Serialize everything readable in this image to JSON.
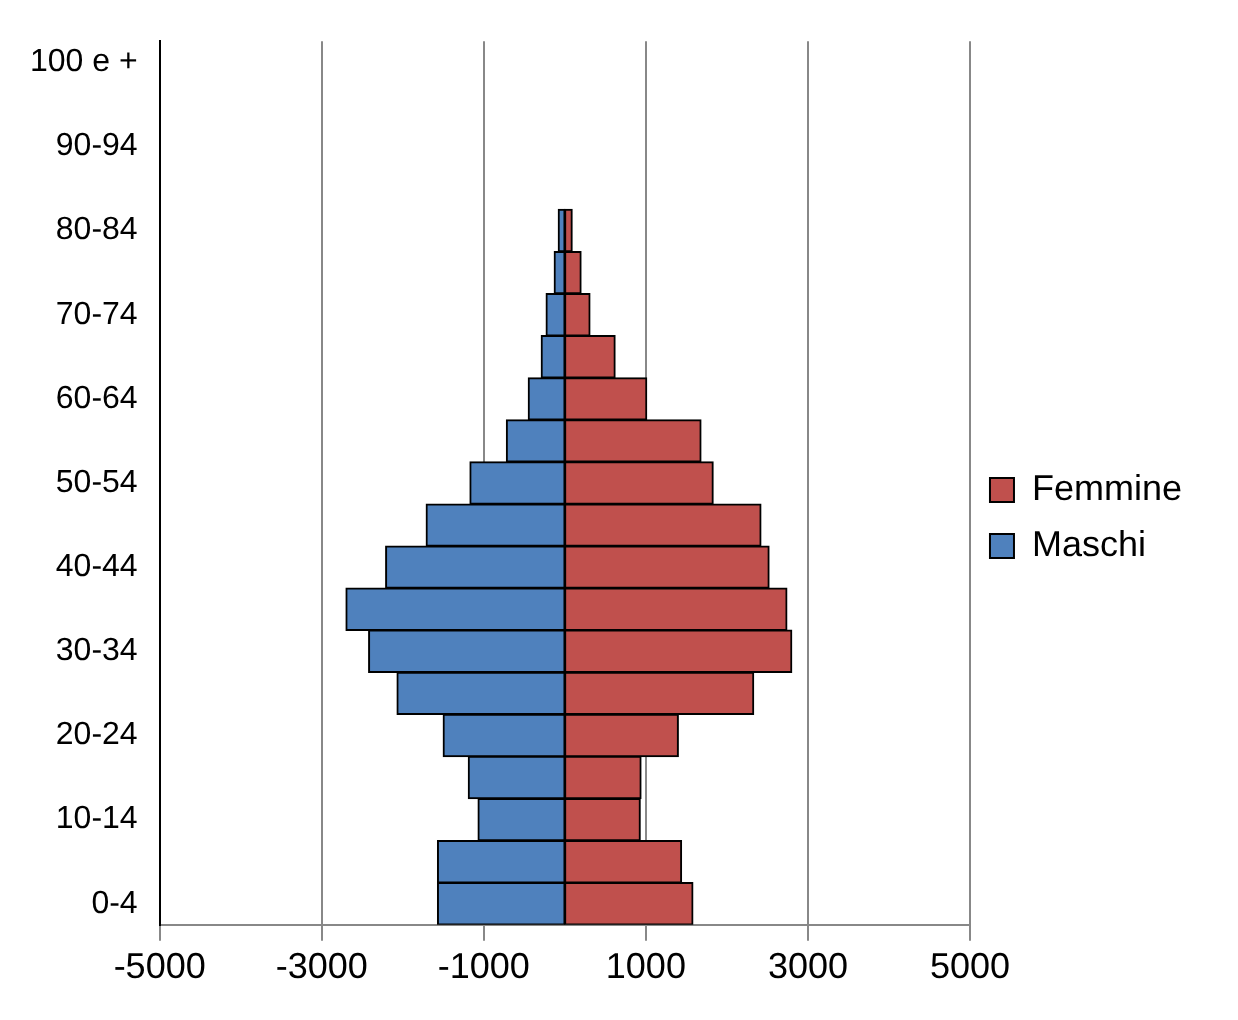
{
  "chart_data": {
    "type": "bar",
    "orientation": "horizontal",
    "stacked": true,
    "categories": [
      "100 e +",
      null,
      "90-94",
      null,
      "80-84",
      null,
      "70-74",
      null,
      "60-64",
      null,
      "50-54",
      null,
      "40-44",
      null,
      "30-34",
      null,
      "20-24",
      null,
      "10-14",
      null,
      "0-4"
    ],
    "series": [
      {
        "name": "Femmine",
        "color": "#c0504d",
        "values": [
          0,
          0,
          0,
          0,
          90,
          200,
          310,
          620,
          1010,
          1680,
          1830,
          2420,
          2520,
          2740,
          2800,
          2330,
          1400,
          940,
          930,
          1440,
          1580
        ]
      },
      {
        "name": "Maschi",
        "color": "#4f81bd",
        "values": [
          0,
          0,
          0,
          0,
          -80,
          -130,
          -230,
          -290,
          -450,
          -720,
          -1170,
          -1710,
          -2210,
          -2700,
          -2420,
          -2070,
          -1500,
          -1190,
          -1070,
          -1570,
          -1570
        ]
      }
    ],
    "xlim": [
      -5000,
      5000
    ],
    "xticks": [
      -5000,
      -3000,
      -1000,
      1000,
      3000,
      5000
    ],
    "grid": "x",
    "legend": "right"
  }
}
